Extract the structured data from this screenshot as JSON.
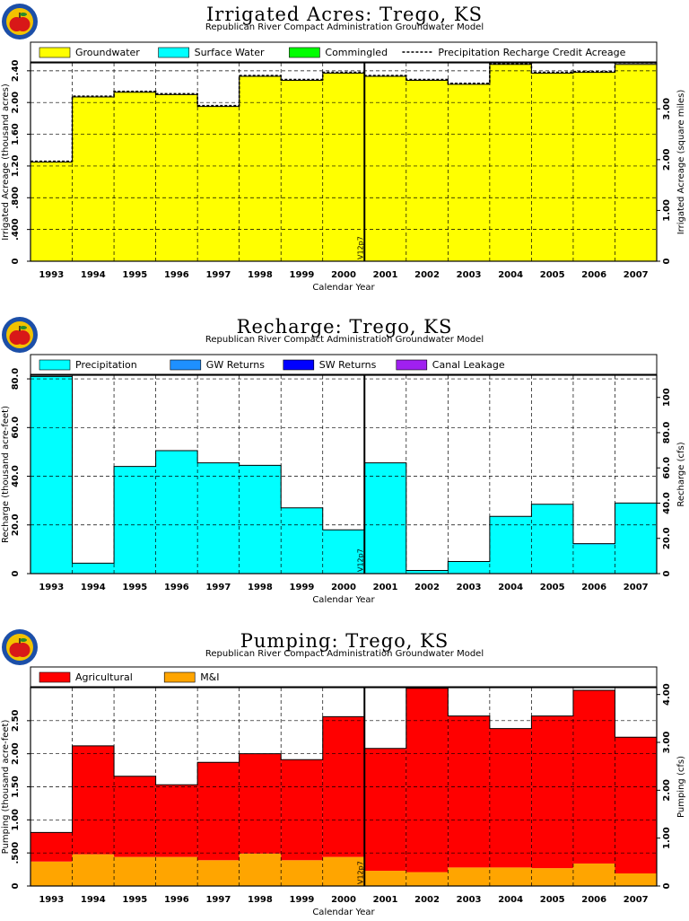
{
  "logo": {
    "icon": "apple-logo-icon",
    "colors": {
      "ring": "#1c4fa8",
      "fill": "#f2c200",
      "apple": "#d81818",
      "leaf": "#2a8a2a"
    }
  },
  "chart_data": [
    {
      "type": "area",
      "title": "Irrigated Acres: Trego, KS",
      "subtitle": "Republican River Compact Administration Groundwater Model",
      "xlabel": "Calendar Year",
      "ylabel": "Irrigated Acreage (thousand acres)",
      "y2label": "Irrigated Acreage (square miles)",
      "categories": [
        "1993",
        "1994",
        "1995",
        "1996",
        "1997",
        "1998",
        "1999",
        "2000",
        "2001",
        "2002",
        "2003",
        "2004",
        "2005",
        "2006",
        "2007"
      ],
      "ylim": [
        0,
        2.5
      ],
      "yticks": [
        0,
        0.4,
        0.8,
        1.2,
        1.6,
        2.0,
        2.4
      ],
      "yticklabels": [
        "0",
        ".400",
        ".800",
        "1.20",
        "1.60",
        "2.00",
        "2.40"
      ],
      "y2lim": [
        0,
        3.906
      ],
      "y2ticks": [
        0,
        1,
        2,
        3
      ],
      "y2ticklabels": [
        "0",
        "1.00",
        "2.00",
        "3.00"
      ],
      "vline": {
        "at": "2000|2001",
        "label": "V12p7"
      },
      "legend": [
        "Groundwater",
        "Surface Water",
        "Commingled",
        "Precipitation Recharge Credit Acreage"
      ],
      "series": [
        {
          "name": "Groundwater",
          "color": "#ffff00",
          "values": [
            1.25,
            2.07,
            2.13,
            2.1,
            1.95,
            2.33,
            2.28,
            2.37,
            2.33,
            2.28,
            2.23,
            2.48,
            2.37,
            2.38,
            2.48
          ]
        },
        {
          "name": "Surface Water",
          "color": "#00ffff",
          "values": [
            0,
            0,
            0,
            0,
            0,
            0,
            0,
            0,
            0,
            0,
            0,
            0,
            0,
            0,
            0
          ]
        },
        {
          "name": "Commingled",
          "color": "#00ff00",
          "values": [
            0,
            0,
            0,
            0,
            0,
            0,
            0,
            0,
            0,
            0,
            0,
            0,
            0,
            0,
            0
          ]
        },
        {
          "name": "Precipitation Recharge Credit Acreage",
          "style": "dashed-line",
          "values": [
            1.26,
            2.08,
            2.14,
            2.11,
            1.96,
            2.34,
            2.29,
            2.38,
            2.34,
            2.29,
            2.24,
            2.49,
            2.38,
            2.39,
            2.5
          ]
        }
      ]
    },
    {
      "type": "area",
      "title": "Recharge: Trego, KS",
      "subtitle": "Republican River Compact Administration Groundwater Model",
      "xlabel": "Calendar Year",
      "ylabel": "Recharge (thousand acre-feet)",
      "y2label": "Recharge (cfs)",
      "categories": [
        "1993",
        "1994",
        "1995",
        "1996",
        "1997",
        "1998",
        "1999",
        "2000",
        "2001",
        "2002",
        "2003",
        "2004",
        "2005",
        "2006",
        "2007"
      ],
      "ylim": [
        0,
        81.5
      ],
      "yticks": [
        0,
        20,
        40,
        60,
        80
      ],
      "yticklabels": [
        "0",
        "20.0",
        "40.0",
        "60.0",
        "80.0"
      ],
      "y2lim": [
        0,
        112.6
      ],
      "y2ticks": [
        0,
        20,
        40,
        60,
        80,
        100
      ],
      "y2ticklabels": [
        "0",
        "20.0",
        "40.0",
        "60.0",
        "80.0",
        "100"
      ],
      "vline": {
        "at": "2000|2001",
        "label": "V12p7"
      },
      "legend": [
        "Precipitation",
        "GW Returns",
        "SW Returns",
        "Canal Leakage"
      ],
      "series": [
        {
          "name": "Precipitation",
          "color": "#00ffff",
          "values": [
            81,
            4.3,
            44,
            50.5,
            45.5,
            44.5,
            27,
            18,
            45.5,
            1.1,
            5,
            23.5,
            28.5,
            12,
            29
          ]
        },
        {
          "name": "GW Returns",
          "color": "#1e90ff",
          "values": [
            0,
            0,
            0,
            0,
            0,
            0,
            0,
            0,
            0,
            0.2,
            0,
            0,
            0,
            0.3,
            0
          ]
        },
        {
          "name": "SW Returns",
          "color": "#0000ff",
          "values": [
            0,
            0,
            0,
            0,
            0,
            0,
            0,
            0,
            0,
            0,
            0,
            0,
            0,
            0,
            0
          ]
        },
        {
          "name": "Canal Leakage",
          "color": "#a020f0",
          "values": [
            0,
            0,
            0,
            0,
            0,
            0,
            0,
            0,
            0,
            0,
            0,
            0,
            0,
            0,
            0
          ]
        }
      ]
    },
    {
      "type": "area",
      "title": "Pumping: Trego, KS",
      "subtitle": "Republican River Compact Administration Groundwater Model",
      "xlabel": "Calendar Year",
      "ylabel": "Pumping (thousand acre-feet)",
      "y2label": "Pumping (cfs)",
      "categories": [
        "1993",
        "1994",
        "1995",
        "1996",
        "1997",
        "1998",
        "1999",
        "2000",
        "2001",
        "2002",
        "2003",
        "2004",
        "2005",
        "2006",
        "2007"
      ],
      "ylim": [
        0,
        3.0
      ],
      "yticks": [
        0,
        0.5,
        1.0,
        1.5,
        2.0,
        2.5
      ],
      "yticklabels": [
        "0",
        ".500",
        "1.00",
        "1.50",
        "2.00",
        "2.50"
      ],
      "y2lim": [
        0,
        4.144
      ],
      "y2ticks": [
        0,
        1,
        2,
        3,
        4
      ],
      "y2ticklabels": [
        "0",
        "1.00",
        "2.00",
        "3.00",
        "4.00"
      ],
      "vline": {
        "at": "2000|2001",
        "label": "V12p7"
      },
      "legend": [
        "Agricultural",
        "M&I"
      ],
      "series": [
        {
          "name": "M&I",
          "color": "#ffa500",
          "values": [
            0.37,
            0.48,
            0.44,
            0.44,
            0.39,
            0.49,
            0.39,
            0.44,
            0.23,
            0.21,
            0.28,
            0.28,
            0.27,
            0.34,
            0.19
          ]
        },
        {
          "name": "Agricultural",
          "color": "#ff0000",
          "values": [
            0.44,
            1.64,
            1.22,
            1.09,
            1.48,
            1.51,
            1.52,
            2.12,
            1.85,
            2.78,
            2.29,
            2.1,
            2.3,
            2.62,
            2.06
          ]
        }
      ]
    }
  ]
}
